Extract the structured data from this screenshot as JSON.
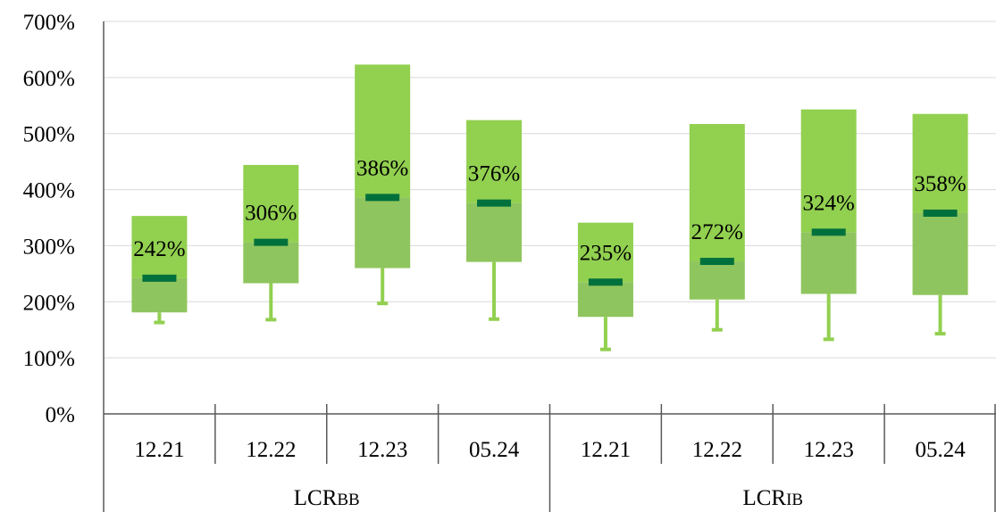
{
  "chart_data": {
    "type": "box",
    "title": "",
    "ylim": [
      0,
      700
    ],
    "y_ticks": [
      "0%",
      "100%",
      "200%",
      "300%",
      "400%",
      "500%",
      "600%",
      "700%"
    ],
    "grid": true,
    "groups": [
      {
        "label": "LCR",
        "sub": "BB",
        "categories": [
          {
            "label": "12.21",
            "whisker_low": 163,
            "q1": 181,
            "median": 242,
            "q3": 353,
            "median_label": "242%"
          },
          {
            "label": "12.22",
            "whisker_low": 168,
            "q1": 233,
            "median": 306,
            "q3": 444,
            "median_label": "306%"
          },
          {
            "label": "12.23",
            "whisker_low": 197,
            "q1": 260,
            "median": 386,
            "q3": 623,
            "median_label": "386%"
          },
          {
            "label": "05.24",
            "whisker_low": 169,
            "q1": 271,
            "median": 376,
            "q3": 524,
            "median_label": "376%"
          }
        ]
      },
      {
        "label": "LCR",
        "sub": "IB",
        "categories": [
          {
            "label": "12.21",
            "whisker_low": 115,
            "q1": 173,
            "median": 235,
            "q3": 341,
            "median_label": "235%"
          },
          {
            "label": "12.22",
            "whisker_low": 150,
            "q1": 204,
            "median": 272,
            "q3": 517,
            "median_label": "272%"
          },
          {
            "label": "12.23",
            "whisker_low": 133,
            "q1": 214,
            "median": 324,
            "q3": 543,
            "median_label": "324%"
          },
          {
            "label": "05.24",
            "whisker_low": 143,
            "q1": 212,
            "median": 358,
            "q3": 535,
            "median_label": "358%"
          }
        ]
      }
    ],
    "colors": {
      "upper_box": "#92D050",
      "lower_box": "#8FC55E",
      "whisker": "#92D050",
      "median_marker": "#00703C",
      "axis": "#595959",
      "grid": "#D9D9D9"
    }
  }
}
